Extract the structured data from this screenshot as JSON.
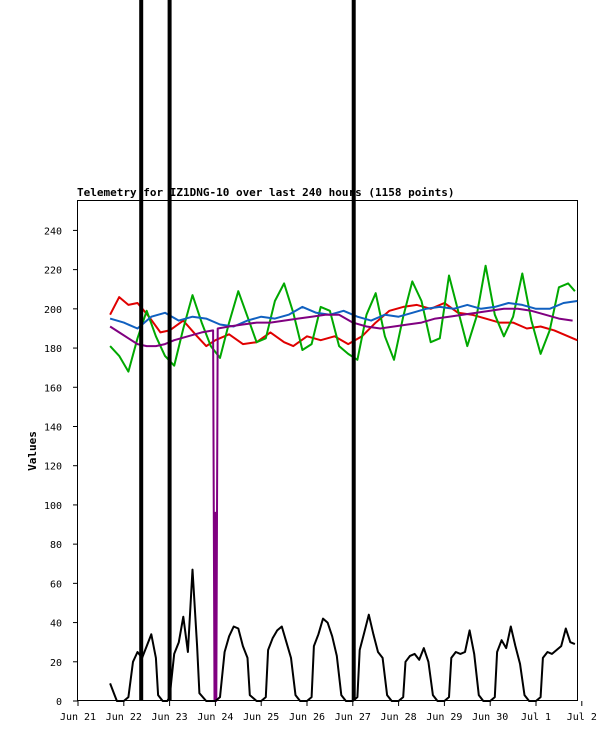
{
  "chart_data": {
    "type": "line",
    "title": "Telemetry for IZ1DNG-10 over last 240 hours (1158 points)",
    "ylabel": "Values",
    "xlabel": "",
    "ylim": [
      0,
      255
    ],
    "xlim": [
      0,
      11.1
    ],
    "y_ticks": [
      0,
      20,
      40,
      60,
      80,
      100,
      120,
      140,
      160,
      180,
      200,
      220,
      240
    ],
    "x_ticks": [
      {
        "label": "Jun 21",
        "x": 0
      },
      {
        "label": "Jun 22",
        "x": 1
      },
      {
        "label": "Jun 23",
        "x": 2
      },
      {
        "label": "Jun 24",
        "x": 3
      },
      {
        "label": "Jun 25",
        "x": 4
      },
      {
        "label": "Jun 26",
        "x": 5
      },
      {
        "label": "Jun 27",
        "x": 6
      },
      {
        "label": "Jun 28",
        "x": 7
      },
      {
        "label": "Jun 29",
        "x": 8
      },
      {
        "label": "Jun 30",
        "x": 9
      },
      {
        "label": "Jul 1",
        "x": 10
      },
      {
        "label": "Jul 2",
        "x": 11
      }
    ],
    "grid": false,
    "vertical_markers": [
      {
        "x": 1.38,
        "color": "#000000"
      },
      {
        "x": 2.0,
        "color": "#000000"
      },
      {
        "x": 6.02,
        "color": "#000000"
      }
    ],
    "series": [
      {
        "color": "#e00000",
        "x": [
          0.7,
          0.9,
          1.1,
          1.3,
          1.55,
          1.8,
          2.0,
          2.3,
          2.6,
          2.8,
          3.0,
          3.3,
          3.6,
          3.9,
          4.2,
          4.5,
          4.7,
          5.0,
          5.3,
          5.6,
          5.9,
          6.2,
          6.5,
          6.8,
          7.1,
          7.4,
          7.7,
          8.0,
          8.3,
          8.6,
          8.9,
          9.2,
          9.5,
          9.8,
          10.1,
          10.4,
          10.7,
          10.9
        ],
        "values": [
          197,
          206,
          202,
          203,
          196,
          188,
          189,
          194,
          186,
          181,
          184,
          187,
          182,
          183,
          188,
          183,
          181,
          186,
          184,
          186,
          182,
          186,
          193,
          199,
          201,
          202,
          200,
          203,
          198,
          197,
          195,
          193,
          193,
          190,
          191,
          189,
          186,
          184
        ]
      },
      {
        "color": "#00a800",
        "x": [
          0.7,
          0.9,
          1.1,
          1.3,
          1.5,
          1.7,
          1.9,
          2.1,
          2.3,
          2.5,
          2.7,
          2.9,
          3.1,
          3.3,
          3.5,
          3.7,
          3.9,
          4.1,
          4.3,
          4.5,
          4.7,
          4.9,
          5.1,
          5.3,
          5.5,
          5.7,
          5.9,
          6.1,
          6.3,
          6.5,
          6.7,
          6.9,
          7.1,
          7.3,
          7.5,
          7.7,
          7.9,
          8.1,
          8.3,
          8.5,
          8.7,
          8.9,
          9.1,
          9.3,
          9.5,
          9.7,
          9.9,
          10.1,
          10.3,
          10.5,
          10.7,
          10.85
        ],
        "values": [
          181,
          176,
          168,
          185,
          199,
          186,
          176,
          171,
          190,
          207,
          193,
          181,
          175,
          193,
          209,
          196,
          183,
          185,
          204,
          213,
          198,
          179,
          182,
          201,
          199,
          181,
          177,
          174,
          197,
          208,
          186,
          174,
          196,
          214,
          204,
          183,
          185,
          217,
          199,
          181,
          196,
          222,
          197,
          186,
          196,
          218,
          194,
          177,
          189,
          211,
          213,
          209
        ]
      },
      {
        "color": "#1060c0",
        "x": [
          0.7,
          1.0,
          1.3,
          1.6,
          1.9,
          2.2,
          2.5,
          2.8,
          3.1,
          3.4,
          3.7,
          4.0,
          4.3,
          4.6,
          4.9,
          5.2,
          5.5,
          5.8,
          6.1,
          6.4,
          6.7,
          7.0,
          7.3,
          7.6,
          7.9,
          8.2,
          8.5,
          8.8,
          9.1,
          9.4,
          9.7,
          10.0,
          10.3,
          10.6,
          10.9
        ],
        "values": [
          195,
          193,
          190,
          196,
          198,
          194,
          196,
          195,
          192,
          191,
          194,
          196,
          195,
          197,
          201,
          198,
          197,
          199,
          196,
          194,
          197,
          196,
          198,
          200,
          201,
          200,
          202,
          200,
          201,
          203,
          202,
          200,
          200,
          203,
          204
        ]
      },
      {
        "color": "#800080",
        "x": [
          0.7,
          0.9,
          1.1,
          1.3,
          1.5,
          1.7,
          1.9,
          2.1,
          2.4,
          2.7,
          2.95,
          2.98,
          3.0,
          3.02,
          3.05,
          3.3,
          3.6,
          3.9,
          4.2,
          4.5,
          4.8,
          5.1,
          5.4,
          5.7,
          6.0,
          6.3,
          6.6,
          6.9,
          7.2,
          7.5,
          7.8,
          8.1,
          8.4,
          8.7,
          9.0,
          9.3,
          9.6,
          9.9,
          10.2,
          10.5,
          10.8
        ],
        "values": [
          191,
          188,
          185,
          182,
          181,
          181,
          182,
          184,
          186,
          188,
          189,
          0,
          96,
          0,
          190,
          191,
          192,
          193,
          193,
          194,
          195,
          196,
          197,
          197,
          193,
          191,
          190,
          191,
          192,
          193,
          195,
          196,
          197,
          198,
          199,
          200,
          200,
          199,
          197,
          195,
          194
        ]
      },
      {
        "color": "#000000",
        "x": [
          0.7,
          0.8,
          0.85,
          1.0,
          1.1,
          1.2,
          1.3,
          1.4,
          1.5,
          1.6,
          1.7,
          1.75,
          1.85,
          1.95,
          2.0,
          2.1,
          2.2,
          2.3,
          2.4,
          2.5,
          2.6,
          2.65,
          2.8,
          3.0,
          3.1,
          3.2,
          3.3,
          3.4,
          3.5,
          3.6,
          3.7,
          3.75,
          3.9,
          4.0,
          4.1,
          4.15,
          4.25,
          4.35,
          4.45,
          4.55,
          4.65,
          4.75,
          4.85,
          5.0,
          5.1,
          5.15,
          5.25,
          5.35,
          5.45,
          5.55,
          5.65,
          5.75,
          5.85,
          6.0,
          6.1,
          6.15,
          6.25,
          6.35,
          6.45,
          6.55,
          6.65,
          6.75,
          6.85,
          7.0,
          7.1,
          7.15,
          7.25,
          7.35,
          7.45,
          7.55,
          7.65,
          7.75,
          7.85,
          8.0,
          8.1,
          8.15,
          8.25,
          8.35,
          8.45,
          8.55,
          8.65,
          8.75,
          8.85,
          9.0,
          9.1,
          9.15,
          9.25,
          9.35,
          9.45,
          9.55,
          9.65,
          9.75,
          9.85,
          10.0,
          10.1,
          10.15,
          10.25,
          10.35,
          10.45,
          10.55,
          10.65,
          10.75,
          10.85
        ],
        "values": [
          9,
          3,
          0,
          0,
          2,
          20,
          25,
          22,
          28,
          34,
          22,
          3,
          0,
          0,
          2,
          24,
          30,
          43,
          25,
          67,
          28,
          4,
          0,
          0,
          2,
          25,
          33,
          38,
          37,
          28,
          22,
          3,
          0,
          0,
          2,
          26,
          32,
          36,
          38,
          30,
          22,
          3,
          0,
          0,
          2,
          28,
          34,
          42,
          40,
          33,
          23,
          3,
          0,
          0,
          2,
          26,
          35,
          44,
          34,
          25,
          22,
          3,
          0,
          0,
          2,
          20,
          23,
          24,
          21,
          27,
          20,
          3,
          0,
          0,
          2,
          22,
          25,
          24,
          25,
          36,
          24,
          3,
          0,
          0,
          2,
          25,
          31,
          27,
          38,
          28,
          19,
          3,
          0,
          0,
          2,
          22,
          25,
          24,
          26,
          28,
          37,
          30,
          29
        ]
      }
    ]
  }
}
